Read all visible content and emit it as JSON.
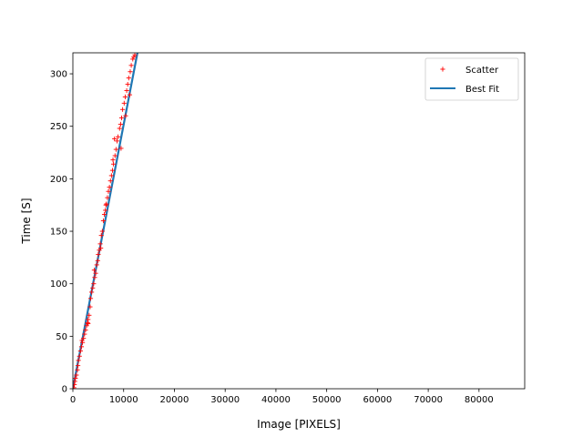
{
  "chart_data": {
    "type": "scatter",
    "xlabel": "Image [PIXELS]",
    "ylabel": "Time [S]",
    "xlim": [
      0,
      89000
    ],
    "ylim": [
      0,
      320
    ],
    "xticks": [
      0,
      10000,
      20000,
      30000,
      40000,
      50000,
      60000,
      70000,
      80000
    ],
    "yticks": [
      0,
      50,
      100,
      150,
      200,
      250,
      300
    ],
    "grid": false,
    "legend_placement": "top-right",
    "series": [
      {
        "name": "Scatter",
        "kind": "scatter",
        "marker": "+",
        "color": "#ff0000",
        "points": [
          [
            200,
            1
          ],
          [
            300,
            4
          ],
          [
            400,
            7
          ],
          [
            500,
            10
          ],
          [
            700,
            13
          ],
          [
            900,
            18
          ],
          [
            1000,
            22
          ],
          [
            1100,
            27
          ],
          [
            1300,
            31
          ],
          [
            1500,
            36
          ],
          [
            1700,
            40
          ],
          [
            1900,
            44
          ],
          [
            2100,
            48
          ],
          [
            2300,
            52
          ],
          [
            2500,
            56
          ],
          [
            2700,
            60
          ],
          [
            2900,
            63
          ],
          [
            3000,
            66
          ],
          [
            3200,
            70
          ],
          [
            3400,
            78
          ],
          [
            3500,
            86
          ],
          [
            3700,
            92
          ],
          [
            3900,
            96
          ],
          [
            4100,
            100
          ],
          [
            4300,
            106
          ],
          [
            4500,
            110
          ],
          [
            4700,
            118
          ],
          [
            4900,
            122
          ],
          [
            5000,
            128
          ],
          [
            5200,
            132
          ],
          [
            5400,
            138
          ],
          [
            5600,
            146
          ],
          [
            5800,
            150
          ],
          [
            6000,
            160
          ],
          [
            6200,
            166
          ],
          [
            6400,
            170
          ],
          [
            6600,
            176
          ],
          [
            6800,
            182
          ],
          [
            7000,
            188
          ],
          [
            7200,
            192
          ],
          [
            7400,
            198
          ],
          [
            7600,
            203
          ],
          [
            7800,
            208
          ],
          [
            8000,
            214
          ],
          [
            8300,
            222
          ],
          [
            8500,
            228
          ],
          [
            8700,
            236
          ],
          [
            8900,
            240
          ],
          [
            9200,
            248
          ],
          [
            9400,
            252
          ],
          [
            9600,
            258
          ],
          [
            9800,
            266
          ],
          [
            10100,
            272
          ],
          [
            10300,
            278
          ],
          [
            10600,
            284
          ],
          [
            10800,
            290
          ],
          [
            11000,
            296
          ],
          [
            11300,
            302
          ],
          [
            11500,
            308
          ],
          [
            11800,
            314
          ],
          [
            12200,
            318
          ],
          [
            9500,
            229
          ],
          [
            7900,
            218
          ],
          [
            6500,
            175
          ],
          [
            5500,
            134
          ],
          [
            4200,
            113
          ],
          [
            3000,
            62
          ],
          [
            1800,
            46
          ],
          [
            8200,
            238
          ],
          [
            10400,
            260
          ],
          [
            11200,
            280
          ],
          [
            12000,
            316
          ]
        ]
      },
      {
        "name": "Best Fit",
        "kind": "line",
        "color": "#1f77b4",
        "points": [
          [
            0,
            0
          ],
          [
            12800,
            322
          ]
        ]
      }
    ]
  }
}
